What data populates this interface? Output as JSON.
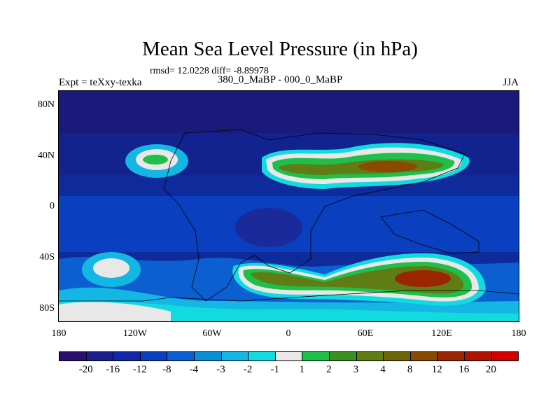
{
  "title": "Mean Sea Level Pressure (in hPa)",
  "stats": "rmsd= 12.0228 diff= -8.89978",
  "left_label": "Expt = teXxy-texka",
  "center_label": "380_0_MaBP - 000_0_MaBP",
  "right_label": "JJA",
  "axes": {
    "y_ticks": [
      "80N",
      "40N",
      "0",
      "40S",
      "80S"
    ],
    "x_ticks": [
      "180",
      "120W",
      "60W",
      "0",
      "60E",
      "120E",
      "180"
    ]
  },
  "colorbar": {
    "colors": [
      "#2a0f6e",
      "#1e1f8f",
      "#1028a8",
      "#0a3fbf",
      "#0b5fd0",
      "#0a8ed8",
      "#14b6e4",
      "#12dbe0",
      "#e8e8e8",
      "#1fbf4a",
      "#3c8f22",
      "#5f7d14",
      "#6e6408",
      "#8a4a00",
      "#9a2600",
      "#b01400",
      "#d40000"
    ],
    "labels": [
      "-20",
      "-16",
      "-12",
      "-8",
      "-4",
      "-3",
      "-2",
      "-1",
      "1",
      "2",
      "3",
      "4",
      "8",
      "12",
      "16",
      "20"
    ]
  }
}
